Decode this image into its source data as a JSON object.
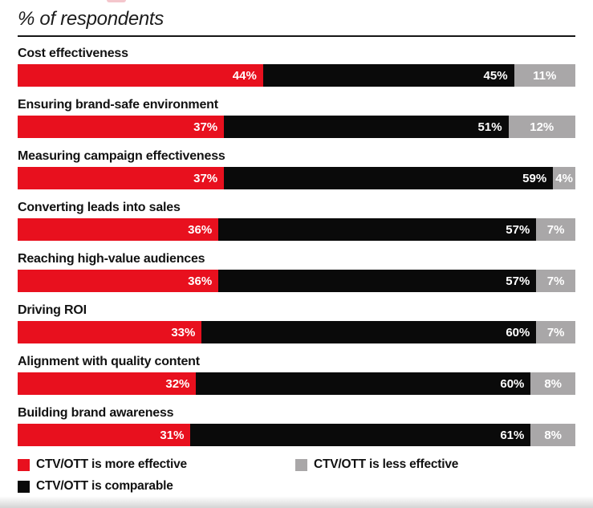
{
  "page": {
    "subtitle": "% of respondents",
    "background": "#ffffff"
  },
  "colors": {
    "more_effective": "#e8101e",
    "comparable": "#0a0a0a",
    "less_effective": "#a9a7a8",
    "rule": "#161616",
    "category_text": "#121212",
    "bar_value_text": "#ffffff"
  },
  "legend": [
    {
      "label": "CTV/OTT is more effective",
      "color_key": "more_effective"
    },
    {
      "label": "CTV/OTT is less effective",
      "color_key": "less_effective"
    },
    {
      "label": "CTV/OTT is comparable",
      "color_key": "comparable"
    }
  ],
  "chart_data": {
    "type": "bar",
    "orientation": "horizontal",
    "stacked": true,
    "title": "% of respondents",
    "value_suffix": "%",
    "xlim": [
      0,
      100
    ],
    "grid": false,
    "legend_position": "bottom",
    "categories": [
      "Cost effectiveness",
      "Ensuring brand-safe environment",
      "Measuring campaign effectiveness",
      "Converting leads into sales",
      "Reaching high-value audiences",
      "Driving ROI",
      "Alignment with quality content",
      "Building brand awareness"
    ],
    "series": [
      {
        "name": "CTV/OTT is more effective",
        "color": "#e8101e",
        "values": [
          44,
          37,
          37,
          36,
          36,
          33,
          32,
          31
        ]
      },
      {
        "name": "CTV/OTT is comparable",
        "color": "#0a0a0a",
        "values": [
          45,
          51,
          59,
          57,
          57,
          60,
          60,
          61
        ]
      },
      {
        "name": "CTV/OTT is less effective",
        "color": "#a9a7a8",
        "values": [
          11,
          12,
          4,
          7,
          7,
          7,
          8,
          8
        ]
      }
    ]
  }
}
